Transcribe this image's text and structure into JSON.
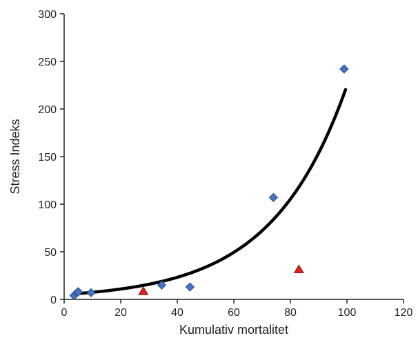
{
  "chart_data": {
    "type": "scatter",
    "title": "",
    "xlabel": "Kumulativ mortalitet",
    "ylabel": "Stress Indeks",
    "xlim": [
      0,
      120
    ],
    "ylim": [
      0,
      300
    ],
    "x_ticks": [
      0,
      20,
      40,
      60,
      80,
      100,
      120
    ],
    "y_ticks": [
      0,
      50,
      100,
      150,
      200,
      250,
      300
    ],
    "grid": false,
    "legend": "none",
    "series": [
      {
        "marker": "diamond",
        "color": "#4472C4",
        "points": [
          {
            "x": 3.5,
            "y": 4
          },
          {
            "x": 4.5,
            "y": 7
          },
          {
            "x": 5.0,
            "y": 8
          },
          {
            "x": 9.5,
            "y": 7
          },
          {
            "x": 34.5,
            "y": 15
          },
          {
            "x": 44.5,
            "y": 13
          },
          {
            "x": 74.0,
            "y": 107
          },
          {
            "x": 99.0,
            "y": 242
          }
        ]
      },
      {
        "marker": "triangle",
        "color": "#E02020",
        "points": [
          {
            "x": 28.0,
            "y": 8
          },
          {
            "x": 83.0,
            "y": 31
          }
        ]
      }
    ],
    "trendline": {
      "type": "exponential",
      "color": "#000000",
      "a": 5.1,
      "b": 0.03785,
      "x_range": [
        3.5,
        99.5
      ]
    }
  }
}
